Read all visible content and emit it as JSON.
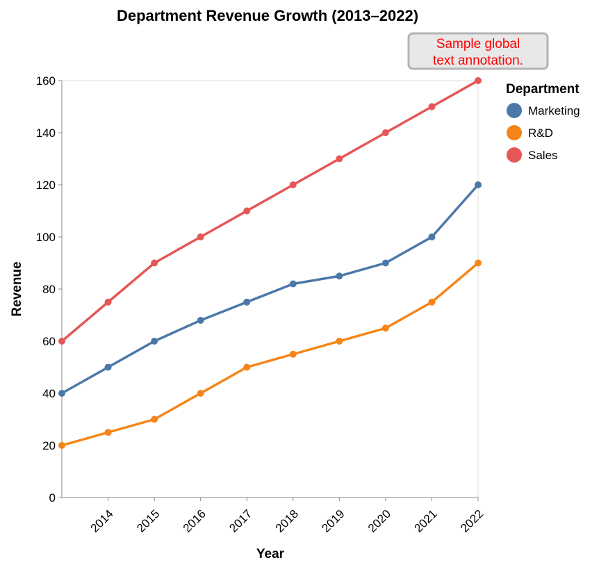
{
  "chart_data": {
    "type": "line",
    "title": "Department Revenue Growth (2013–2022)",
    "xlabel": "Year",
    "ylabel": "Revenue",
    "x": [
      2013,
      2014,
      2015,
      2016,
      2017,
      2018,
      2019,
      2020,
      2021,
      2022
    ],
    "x_tick_labels": [
      "2014",
      "2015",
      "2016",
      "2017",
      "2018",
      "2019",
      "2020",
      "2021",
      "2022"
    ],
    "ylim": [
      0,
      160
    ],
    "y_ticks": [
      0,
      20,
      40,
      60,
      80,
      100,
      120,
      140,
      160
    ],
    "grid": false,
    "legend": {
      "title": "Department",
      "placement": "right"
    },
    "series": [
      {
        "name": "Marketing",
        "color": "#4c78a8",
        "values": [
          40,
          50,
          60,
          68,
          75,
          82,
          85,
          90,
          100,
          120
        ]
      },
      {
        "name": "R&D",
        "color": "#f58518",
        "values": [
          20,
          25,
          30,
          40,
          50,
          55,
          60,
          65,
          75,
          90
        ]
      },
      {
        "name": "Sales",
        "color": "#e45756",
        "values": [
          60,
          75,
          90,
          100,
          110,
          120,
          130,
          140,
          150,
          160
        ]
      }
    ],
    "annotations": [
      {
        "lines": [
          "Sample global",
          "text annotation."
        ],
        "color": "#ff0000",
        "box_fill": "#e8e8e8",
        "box_stroke": "#b4b4b4"
      }
    ]
  }
}
